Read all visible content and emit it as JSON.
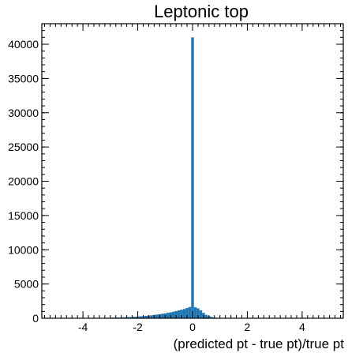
{
  "chart_data": {
    "type": "bar",
    "title": "Leptonic top",
    "xlabel": "(predicted pt - true pt)/true pt",
    "ylabel": "",
    "xlim": [
      -5.5,
      5.5
    ],
    "ylim": [
      0,
      43000
    ],
    "xticks": [
      -4,
      -2,
      0,
      2,
      4
    ],
    "yticks": [
      0,
      5000,
      10000,
      15000,
      20000,
      25000,
      30000,
      35000,
      40000
    ],
    "grid": false,
    "bin_width": 0.1,
    "bar_color": "#1f77b4",
    "bins": [
      {
        "x": -4.0,
        "y": 20
      },
      {
        "x": -3.9,
        "y": 25
      },
      {
        "x": -3.8,
        "y": 30
      },
      {
        "x": -3.7,
        "y": 35
      },
      {
        "x": -3.6,
        "y": 40
      },
      {
        "x": -3.5,
        "y": 45
      },
      {
        "x": -3.4,
        "y": 50
      },
      {
        "x": -3.3,
        "y": 55
      },
      {
        "x": -3.2,
        "y": 60
      },
      {
        "x": -3.1,
        "y": 70
      },
      {
        "x": -3.0,
        "y": 80
      },
      {
        "x": -2.9,
        "y": 90
      },
      {
        "x": -2.8,
        "y": 100
      },
      {
        "x": -2.7,
        "y": 110
      },
      {
        "x": -2.6,
        "y": 120
      },
      {
        "x": -2.5,
        "y": 140
      },
      {
        "x": -2.4,
        "y": 160
      },
      {
        "x": -2.3,
        "y": 180
      },
      {
        "x": -2.2,
        "y": 200
      },
      {
        "x": -2.1,
        "y": 220
      },
      {
        "x": -2.0,
        "y": 250
      },
      {
        "x": -1.9,
        "y": 280
      },
      {
        "x": -1.8,
        "y": 310
      },
      {
        "x": -1.7,
        "y": 350
      },
      {
        "x": -1.6,
        "y": 390
      },
      {
        "x": -1.5,
        "y": 430
      },
      {
        "x": -1.4,
        "y": 480
      },
      {
        "x": -1.3,
        "y": 530
      },
      {
        "x": -1.2,
        "y": 590
      },
      {
        "x": -1.1,
        "y": 650
      },
      {
        "x": -1.0,
        "y": 720
      },
      {
        "x": -0.9,
        "y": 790
      },
      {
        "x": -0.8,
        "y": 870
      },
      {
        "x": -0.7,
        "y": 950
      },
      {
        "x": -0.6,
        "y": 1050
      },
      {
        "x": -0.5,
        "y": 1150
      },
      {
        "x": -0.4,
        "y": 1250
      },
      {
        "x": -0.3,
        "y": 1350
      },
      {
        "x": -0.2,
        "y": 1500
      },
      {
        "x": -0.1,
        "y": 1650
      },
      {
        "x": 0.0,
        "y": 41000
      },
      {
        "x": 0.1,
        "y": 1600
      },
      {
        "x": 0.2,
        "y": 1450
      },
      {
        "x": 0.3,
        "y": 1150
      },
      {
        "x": 0.4,
        "y": 800
      },
      {
        "x": 0.5,
        "y": 500
      },
      {
        "x": 0.6,
        "y": 300
      },
      {
        "x": 0.7,
        "y": 180
      },
      {
        "x": 0.8,
        "y": 100
      },
      {
        "x": 0.9,
        "y": 60
      },
      {
        "x": 1.0,
        "y": 35
      },
      {
        "x": 1.1,
        "y": 20
      },
      {
        "x": 1.2,
        "y": 10
      }
    ]
  }
}
